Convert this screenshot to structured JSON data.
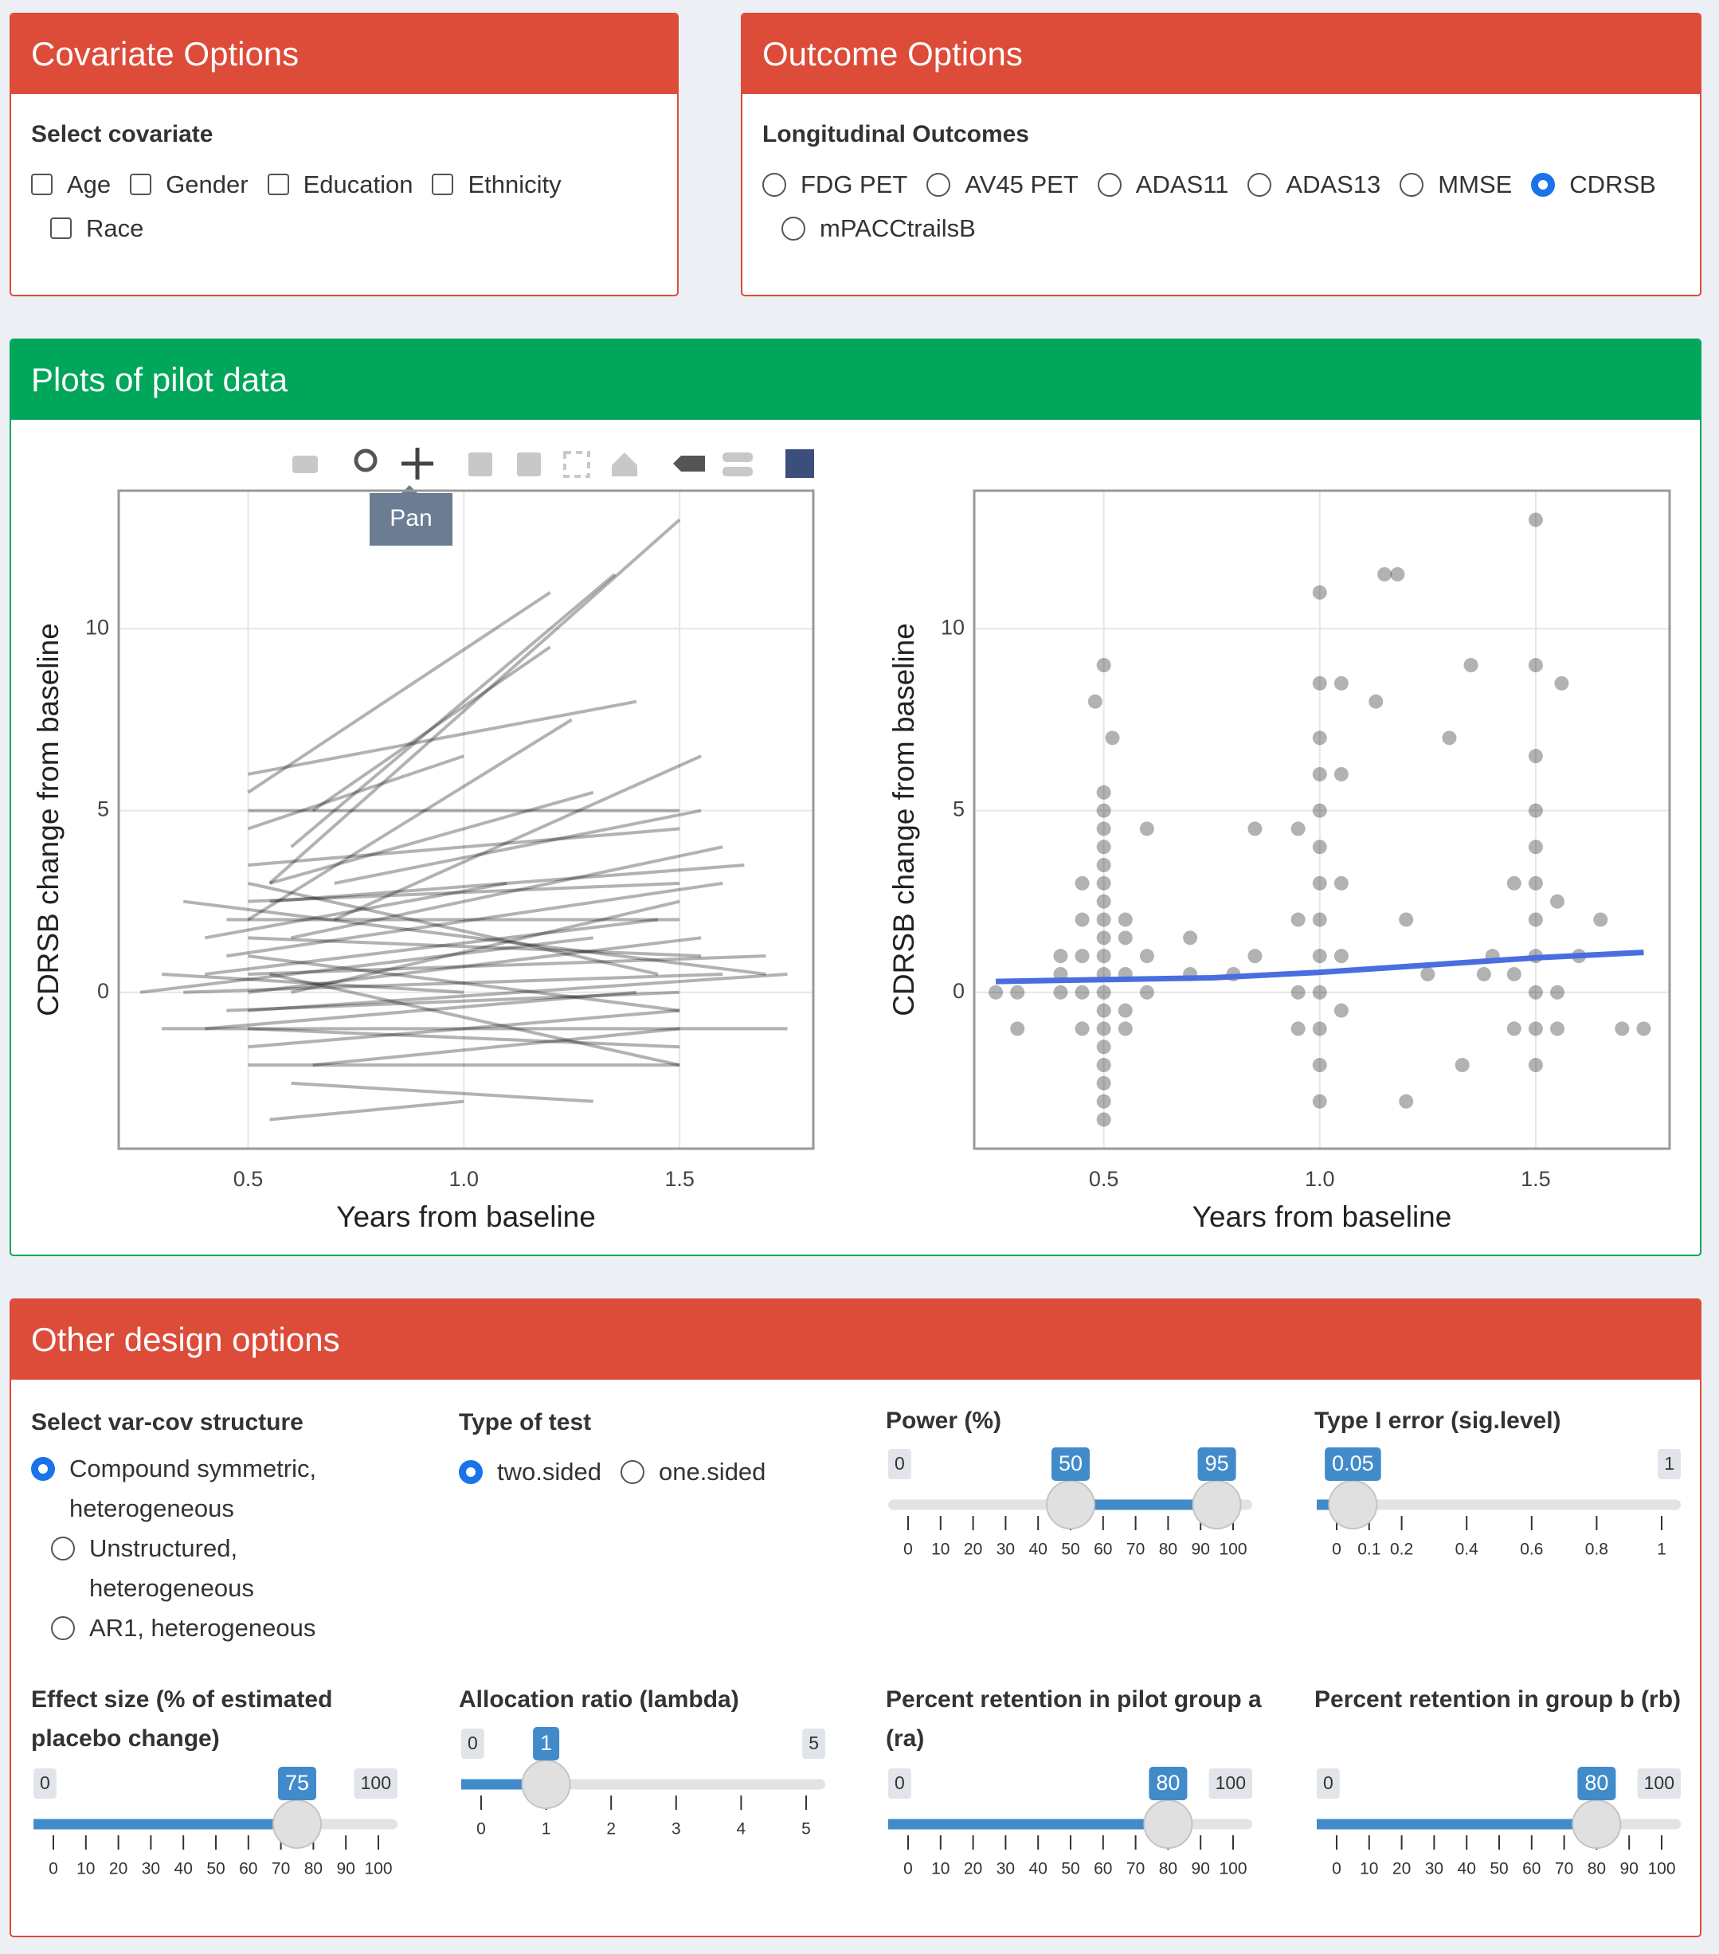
{
  "covariate_options": {
    "title": "Covariate Options",
    "label": "Select covariate",
    "options": [
      "Age",
      "Gender",
      "Education",
      "Ethnicity",
      "Race"
    ]
  },
  "outcome_options": {
    "title": "Outcome Options",
    "label": "Longitudinal Outcomes",
    "options": [
      "FDG PET",
      "AV45 PET",
      "ADAS11",
      "ADAS13",
      "MMSE",
      "CDRSB",
      "mPACCtrailsB"
    ],
    "selected": 5
  },
  "pilot_plots": {
    "title": "Plots of pilot data",
    "tooltip": "Pan"
  },
  "chart_data": [
    {
      "type": "spaghetti",
      "xlabel": "Years from baseline",
      "ylabel": "CDRSB change from baseline",
      "color": "#000000",
      "grid": true,
      "xlim": [
        0.2,
        1.81
      ],
      "ylim": [
        -4.3,
        13.8
      ],
      "xticks": [
        0.5,
        {
          "value": 1,
          "label": "1.0"
        },
        1.5
      ],
      "yticks": [
        0,
        5,
        10
      ],
      "segments": [
        [
          0.25,
          0,
          1.3,
          1.5
        ],
        [
          0.35,
          2.5,
          1.7,
          0.5
        ],
        [
          0.5,
          5.5,
          1.2,
          11
        ],
        [
          0.6,
          4,
          1.35,
          11.5
        ],
        [
          0.55,
          3,
          1.5,
          13
        ],
        [
          0.5,
          2,
          1.25,
          7.5
        ],
        [
          0.45,
          1,
          1.6,
          3
        ],
        [
          0.3,
          -1,
          1.75,
          -1
        ],
        [
          0.5,
          -2,
          1.5,
          -2
        ],
        [
          0.55,
          -3.5,
          1.0,
          -3
        ],
        [
          0.6,
          -2.5,
          1.3,
          -3
        ],
        [
          0.4,
          0.5,
          1.45,
          2
        ],
        [
          0.7,
          3,
          1.55,
          5
        ],
        [
          0.5,
          6,
          1.4,
          8
        ],
        [
          0.65,
          5,
          1.2,
          9.5
        ],
        [
          0.5,
          1.5,
          1.55,
          1
        ],
        [
          0.45,
          -0.5,
          1.5,
          0
        ],
        [
          0.35,
          0,
          1.6,
          0.5
        ],
        [
          0.5,
          3.5,
          1.5,
          4.5
        ],
        [
          0.55,
          2.5,
          1.65,
          3.5
        ],
        [
          0.5,
          -1,
          1.5,
          -1.5
        ],
        [
          0.4,
          1.5,
          1.1,
          3
        ],
        [
          0.6,
          0,
          1.5,
          2.5
        ],
        [
          0.5,
          0.5,
          1.7,
          1
        ],
        [
          0.5,
          4.5,
          1.0,
          6.5
        ],
        [
          0.7,
          2,
          1.55,
          6.5
        ],
        [
          0.5,
          -1.5,
          1.5,
          -0.5
        ],
        [
          0.45,
          2,
          1.5,
          2
        ],
        [
          0.5,
          1,
          1.5,
          -0.5
        ],
        [
          0.55,
          3,
          1.3,
          5.5
        ],
        [
          0.3,
          0.5,
          1.0,
          0
        ],
        [
          0.5,
          -0.5,
          1.75,
          0.5
        ],
        [
          0.6,
          1.5,
          1.6,
          4
        ],
        [
          0.5,
          2.5,
          1.5,
          3
        ],
        [
          0.65,
          -2,
          1.5,
          -1
        ],
        [
          0.5,
          0,
          1.55,
          1.5
        ],
        [
          0.4,
          -1,
          1.4,
          0
        ],
        [
          0.5,
          3,
          1.45,
          0.5
        ],
        [
          0.55,
          0.5,
          1.5,
          -2
        ],
        [
          0.5,
          5,
          1.5,
          5
        ]
      ]
    },
    {
      "type": "scatter",
      "xlabel": "Years from baseline",
      "ylabel": "CDRSB change from baseline",
      "color": "#000000",
      "grid": true,
      "xlim": [
        0.2,
        1.81
      ],
      "ylim": [
        -4.3,
        13.8
      ],
      "xticks": [
        0.5,
        {
          "value": 1,
          "label": "1.0"
        },
        1.5
      ],
      "yticks": [
        0,
        5,
        10
      ],
      "x": [
        0.5,
        0.5,
        0.5,
        0.5,
        0.5,
        0.5,
        0.5,
        0.5,
        0.5,
        0.5,
        0.5,
        0.5,
        0.5,
        0.5,
        0.5,
        0.5,
        0.5,
        0.5,
        0.5,
        0.5,
        0.48,
        0.52,
        0.45,
        0.45,
        0.45,
        0.45,
        0.45,
        0.55,
        0.55,
        0.55,
        0.55,
        0.55,
        0.4,
        0.4,
        0.4,
        0.6,
        0.6,
        0.6,
        0.3,
        0.3,
        0.25,
        0.7,
        0.7,
        1.0,
        1.0,
        1.0,
        1.0,
        1.0,
        1.0,
        1.0,
        1.0,
        1.0,
        1.0,
        1.0,
        1.0,
        1.0,
        0.95,
        0.95,
        0.95,
        0.95,
        1.05,
        1.05,
        1.05,
        1.05,
        1.05,
        1.15,
        1.18,
        1.13,
        1.2,
        1.2,
        1.3,
        1.35,
        0.85,
        0.85,
        0.8,
        1.25,
        1.5,
        1.5,
        1.5,
        1.5,
        1.5,
        1.5,
        1.5,
        1.5,
        1.5,
        1.5,
        1.5,
        1.45,
        1.45,
        1.45,
        1.55,
        1.55,
        1.55,
        1.56,
        1.6,
        1.65,
        1.4,
        1.38,
        1.7,
        1.75,
        1.33
      ],
      "y": [
        -3.5,
        -3,
        -2.5,
        -2,
        -1.5,
        -1,
        -0.5,
        0,
        0.5,
        1,
        1.5,
        2,
        2.5,
        3,
        3.5,
        4,
        4.5,
        5,
        5.5,
        9,
        8,
        7,
        3,
        2,
        1,
        0,
        -1,
        2,
        1.5,
        0.5,
        -0.5,
        -1,
        1,
        0.5,
        0,
        4.5,
        1,
        0,
        0,
        -1,
        0,
        1.5,
        0.5,
        -3,
        -2,
        -1,
        0,
        1,
        2,
        3,
        4,
        5,
        6,
        7,
        8.5,
        11,
        2,
        0,
        -1,
        4.5,
        3,
        1,
        -0.5,
        6,
        8.5,
        11.5,
        11.5,
        8,
        2,
        -3,
        7,
        9,
        4.5,
        1,
        0.5,
        0.5,
        13,
        9,
        6.5,
        5,
        4,
        3,
        2,
        1,
        0,
        -1,
        -2,
        3,
        0.5,
        -1,
        2.5,
        0,
        -1,
        8.5,
        1,
        2,
        1,
        0.5,
        -1,
        -1,
        -2
      ],
      "smooth": {
        "color": "#4a6ee0",
        "x": [
          0.25,
          0.5,
          0.75,
          1.0,
          1.25,
          1.5,
          1.75
        ],
        "y": [
          0.3,
          0.35,
          0.4,
          0.55,
          0.75,
          0.95,
          1.1
        ]
      }
    }
  ],
  "design_options": {
    "title": "Other design options",
    "varcov": {
      "label": "Select var-cov structure",
      "options": [
        "Compound symmetric, heterogeneous",
        "Unstructured, heterogeneous",
        "AR1, heterogeneous"
      ],
      "selected": 0
    },
    "test_type": {
      "label": "Type of test",
      "options": [
        "two.sided",
        "one.sided"
      ],
      "selected": 0
    },
    "sliders": [
      {
        "label": "Power (%)",
        "min": 0,
        "max": 100,
        "value": [
          50,
          95
        ],
        "color": "#428bca",
        "ticks": [
          0,
          10,
          20,
          30,
          40,
          50,
          60,
          70,
          80,
          90,
          100
        ]
      },
      {
        "label": "Type I error (sig.level)",
        "min": 0,
        "max": 1,
        "value": 0.05,
        "color": "#428bca",
        "ticks": [
          0,
          0.1,
          0.2,
          0.4,
          0.6,
          0.8,
          1
        ]
      },
      {
        "label": "Effect size (% of estimated placebo change)",
        "min": 0,
        "max": 100,
        "value": 75,
        "color": "#428bca",
        "ticks": [
          0,
          10,
          20,
          30,
          40,
          50,
          60,
          70,
          80,
          90,
          100
        ]
      },
      {
        "label": "Allocation ratio (lambda)",
        "min": 0,
        "max": 5,
        "value": 1,
        "color": "#428bca",
        "ticks": [
          0,
          1,
          2,
          3,
          4,
          5
        ]
      },
      {
        "label": "Percent retention in pilot group a (ra)",
        "min": 0,
        "max": 100,
        "value": 80,
        "color": "#428bca",
        "ticks": [
          0,
          10,
          20,
          30,
          40,
          50,
          60,
          70,
          80,
          90,
          100
        ]
      },
      {
        "label": "Percent retention in group b (rb)",
        "min": 0,
        "max": 100,
        "value": 80,
        "color": "#428bca",
        "ticks": [
          0,
          10,
          20,
          30,
          40,
          50,
          60,
          70,
          80,
          90,
          100
        ]
      }
    ]
  }
}
